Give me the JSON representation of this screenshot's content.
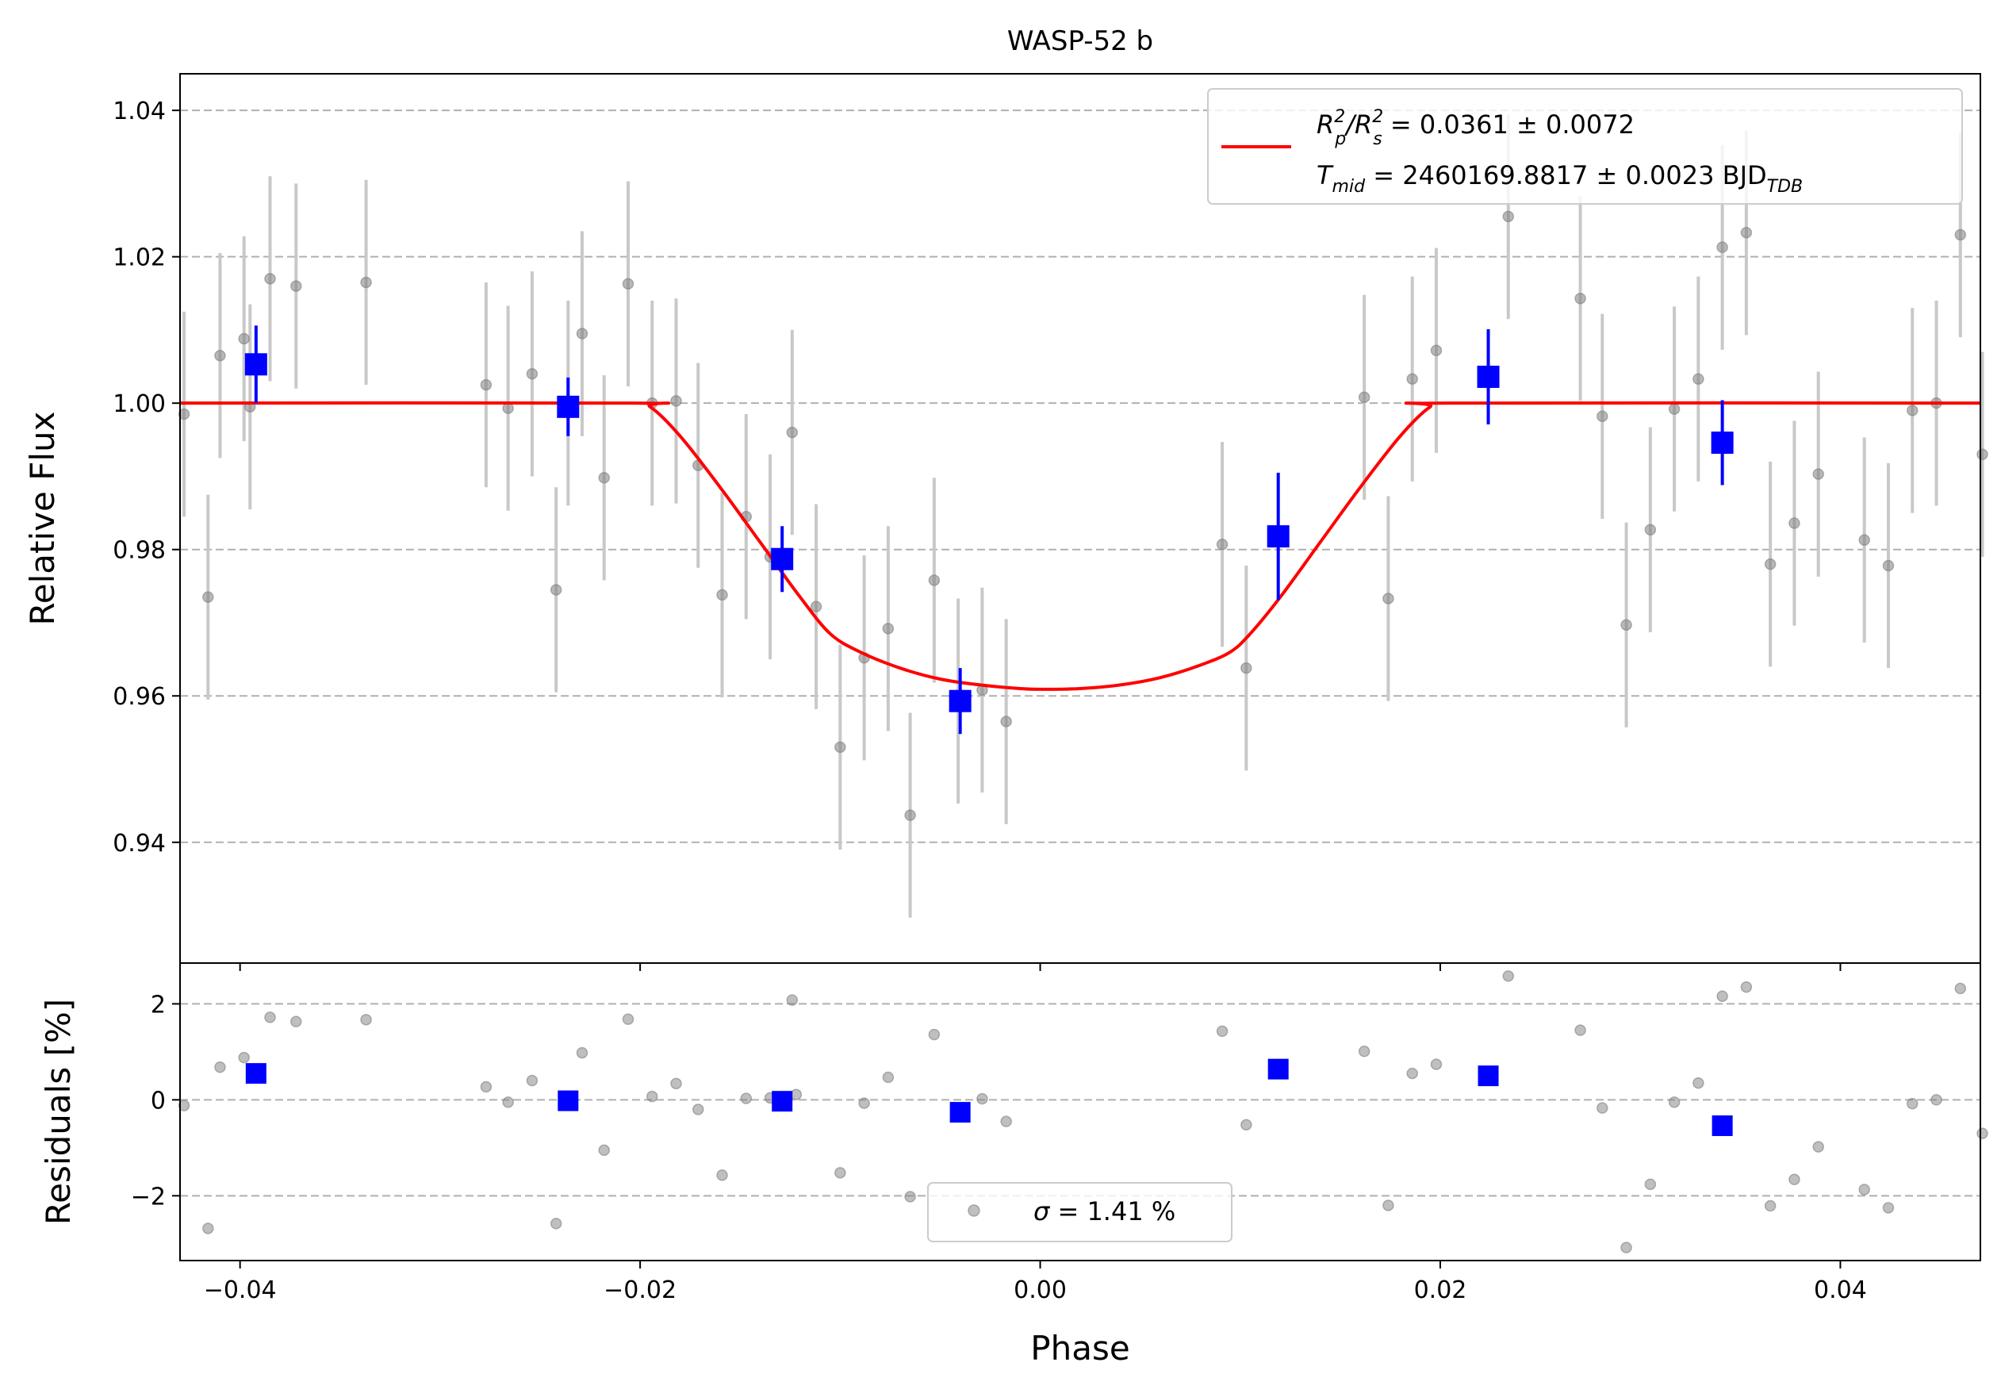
{
  "chart_data": [
    {
      "type": "scatter",
      "title": "WASP-52 b",
      "xlabel": "",
      "ylabel": "Relative Flux",
      "xlim": [
        -0.043,
        0.047
      ],
      "ylim": [
        0.9235,
        1.045
      ],
      "grid": "horizontal-dashed",
      "legend_position": "top-right",
      "xticks": [
        -0.04,
        -0.02,
        0.0,
        0.02,
        0.04
      ],
      "xtick_labels": [
        "",
        "",
        "",
        "",
        ""
      ],
      "yticks": [
        0.94,
        0.96,
        0.98,
        1.0,
        1.02,
        1.04
      ],
      "ytick_labels": [
        "0.94",
        "0.96",
        "0.98",
        "1.00",
        "1.02",
        "1.04"
      ],
      "legend": {
        "line1": {
          "prefix": "R",
          "sub1": "p",
          "sup1": "2",
          "mid": "/R",
          "sub2": "s",
          "sup2": "2",
          "suffix": " = 0.0361 ± 0.0072"
        },
        "line2": {
          "prefix": "T",
          "sub1": "mid",
          "suffix": " = 2460169.8817 ± 0.0023 BJD",
          "sub2": "TDB"
        }
      },
      "colors": {
        "raw": "#808080",
        "raw_err": "#c8c8c8",
        "binned": "#0000ff",
        "model": "#ff0000",
        "grid": "#b0b0b0"
      },
      "model": {
        "name": "transit model",
        "x": [
          -0.043,
          -0.0205,
          -0.0195,
          -0.018,
          -0.016,
          -0.014,
          -0.012,
          -0.0105,
          -0.009,
          -0.007,
          -0.005,
          -0.003,
          -0.001,
          0.0,
          0.002,
          0.004,
          0.006,
          0.008,
          0.0095,
          0.0105,
          0.012,
          0.014,
          0.016,
          0.018,
          0.0195,
          0.0205,
          0.047
        ],
        "y": [
          1.0,
          1.0,
          0.9995,
          0.9955,
          0.9885,
          0.981,
          0.9735,
          0.9685,
          0.966,
          0.9638,
          0.9623,
          0.9615,
          0.961,
          0.9609,
          0.961,
          0.9615,
          0.9625,
          0.9642,
          0.966,
          0.9685,
          0.9735,
          0.981,
          0.9885,
          0.9955,
          0.9995,
          1.0,
          1.0
        ]
      },
      "raw_points": {
        "x": [
          -0.0428,
          -0.0416,
          -0.041,
          -0.0398,
          -0.0395,
          -0.0385,
          -0.0372,
          -0.0337,
          -0.0277,
          -0.0266,
          -0.0254,
          -0.0242,
          -0.0236,
          -0.0229,
          -0.0218,
          -0.0206,
          -0.0194,
          -0.0182,
          -0.0171,
          -0.0159,
          -0.0147,
          -0.0135,
          -0.0124,
          -0.0112,
          -0.01,
          -0.0088,
          -0.0076,
          -0.0065,
          -0.0053,
          -0.0041,
          -0.0029,
          -0.0017,
          0.0091,
          0.0103,
          0.0162,
          0.0174,
          0.0186,
          0.0198,
          0.0234,
          0.027,
          0.0281,
          0.0293,
          0.0305,
          0.0317,
          0.0329,
          0.0341,
          0.0353,
          0.0365,
          0.0377,
          0.0389,
          0.0412,
          0.0424,
          0.0436,
          0.0448,
          0.046,
          0.0471
        ],
        "y": [
          0.9985,
          0.9735,
          1.0065,
          1.0088,
          0.9995,
          1.017,
          1.016,
          1.0165,
          1.0025,
          0.9993,
          1.004,
          0.9745,
          1.0,
          1.0095,
          0.9898,
          1.0163,
          1.0,
          1.0003,
          0.9915,
          0.9738,
          0.9845,
          0.979,
          0.996,
          0.9722,
          0.953,
          0.9652,
          0.9692,
          0.9437,
          0.9758,
          0.9593,
          0.9608,
          0.9565,
          0.9807,
          0.9638,
          1.0008,
          0.9733,
          1.0033,
          1.0072,
          1.0255,
          1.0143,
          0.9982,
          0.9697,
          0.9827,
          0.9992,
          1.0033,
          1.0213,
          1.0233,
          0.978,
          0.9836,
          0.9903,
          0.9813,
          0.9778,
          0.999,
          1.0,
          1.023,
          0.993
        ],
        "yerr": [
          0.014,
          0.014,
          0.014,
          0.014,
          0.014,
          0.014,
          0.014,
          0.014,
          0.014,
          0.014,
          0.014,
          0.014,
          0.014,
          0.014,
          0.014,
          0.014,
          0.014,
          0.014,
          0.014,
          0.014,
          0.014,
          0.014,
          0.014,
          0.014,
          0.014,
          0.014,
          0.014,
          0.014,
          0.014,
          0.014,
          0.014,
          0.014,
          0.014,
          0.014,
          0.014,
          0.014,
          0.014,
          0.014,
          0.014,
          0.014,
          0.014,
          0.014,
          0.014,
          0.014,
          0.014,
          0.014,
          0.014,
          0.014,
          0.014,
          0.014,
          0.014,
          0.014,
          0.014,
          0.014,
          0.014,
          0.014
        ]
      },
      "binned_points": {
        "x": [
          -0.0392,
          -0.0236,
          -0.0129,
          -0.004,
          0.0119,
          0.0224,
          0.0341
        ],
        "y": [
          1.0053,
          0.9995,
          0.9787,
          0.9593,
          0.9818,
          1.0036,
          0.9946
        ],
        "yerr": [
          0.0053,
          0.004,
          0.0045,
          0.0045,
          0.0087,
          0.0065,
          0.0058
        ]
      }
    },
    {
      "type": "scatter",
      "title": "",
      "xlabel": "Phase",
      "ylabel": "Residuals [%]",
      "xlim": [
        -0.043,
        0.047
      ],
      "ylim": [
        -3.35,
        2.85
      ],
      "grid": "horizontal-dashed",
      "legend_position": "bottom-center",
      "xticks": [
        -0.04,
        -0.02,
        0.0,
        0.02,
        0.04
      ],
      "xtick_labels": [
        "−0.04",
        "−0.02",
        "0.00",
        "0.02",
        "0.04"
      ],
      "yticks": [
        -2,
        0,
        2
      ],
      "ytick_labels": [
        "−2",
        "0",
        "2"
      ],
      "legend": {
        "sigma_symbol": "σ",
        "sigma_text": " = 1.41 %"
      },
      "raw_points": {
        "x": [
          -0.0428,
          -0.0416,
          -0.041,
          -0.0398,
          -0.0385,
          -0.0372,
          -0.0337,
          -0.0277,
          -0.0266,
          -0.0254,
          -0.0242,
          -0.0229,
          -0.0218,
          -0.0206,
          -0.0194,
          -0.0182,
          -0.0171,
          -0.0159,
          -0.0147,
          -0.0135,
          -0.0124,
          -0.0122,
          -0.01,
          -0.0088,
          -0.0076,
          -0.0065,
          -0.0053,
          -0.0029,
          -0.0017,
          0.0091,
          0.0103,
          0.0162,
          0.0174,
          0.0186,
          0.0198,
          0.0234,
          0.027,
          0.0281,
          0.0293,
          0.0305,
          0.0317,
          0.0329,
          0.0341,
          0.0353,
          0.0365,
          0.0377,
          0.0389,
          0.0412,
          0.0424,
          0.0436,
          0.0448,
          0.046,
          0.0471
        ],
        "y": [
          -0.12,
          -2.68,
          0.68,
          0.88,
          1.72,
          1.63,
          1.67,
          0.27,
          -0.05,
          0.4,
          -2.58,
          0.98,
          -1.05,
          1.68,
          0.07,
          0.34,
          -0.2,
          -1.57,
          0.03,
          0.04,
          2.08,
          0.11,
          -1.52,
          -0.07,
          0.47,
          -2.02,
          1.36,
          0.02,
          -0.45,
          1.43,
          -0.52,
          1.01,
          -2.2,
          0.55,
          0.74,
          2.58,
          1.45,
          -0.17,
          -3.08,
          -1.76,
          -0.05,
          0.35,
          2.16,
          2.35,
          -2.21,
          -1.66,
          -0.98,
          -1.87,
          -2.25,
          -0.08,
          0.0,
          2.32,
          -0.7
        ]
      },
      "binned_points": {
        "x": [
          -0.0392,
          -0.0236,
          -0.0129,
          -0.004,
          0.0119,
          0.0224,
          0.0341
        ],
        "y": [
          0.55,
          -0.02,
          -0.03,
          -0.26,
          0.64,
          0.5,
          -0.54
        ]
      }
    }
  ]
}
